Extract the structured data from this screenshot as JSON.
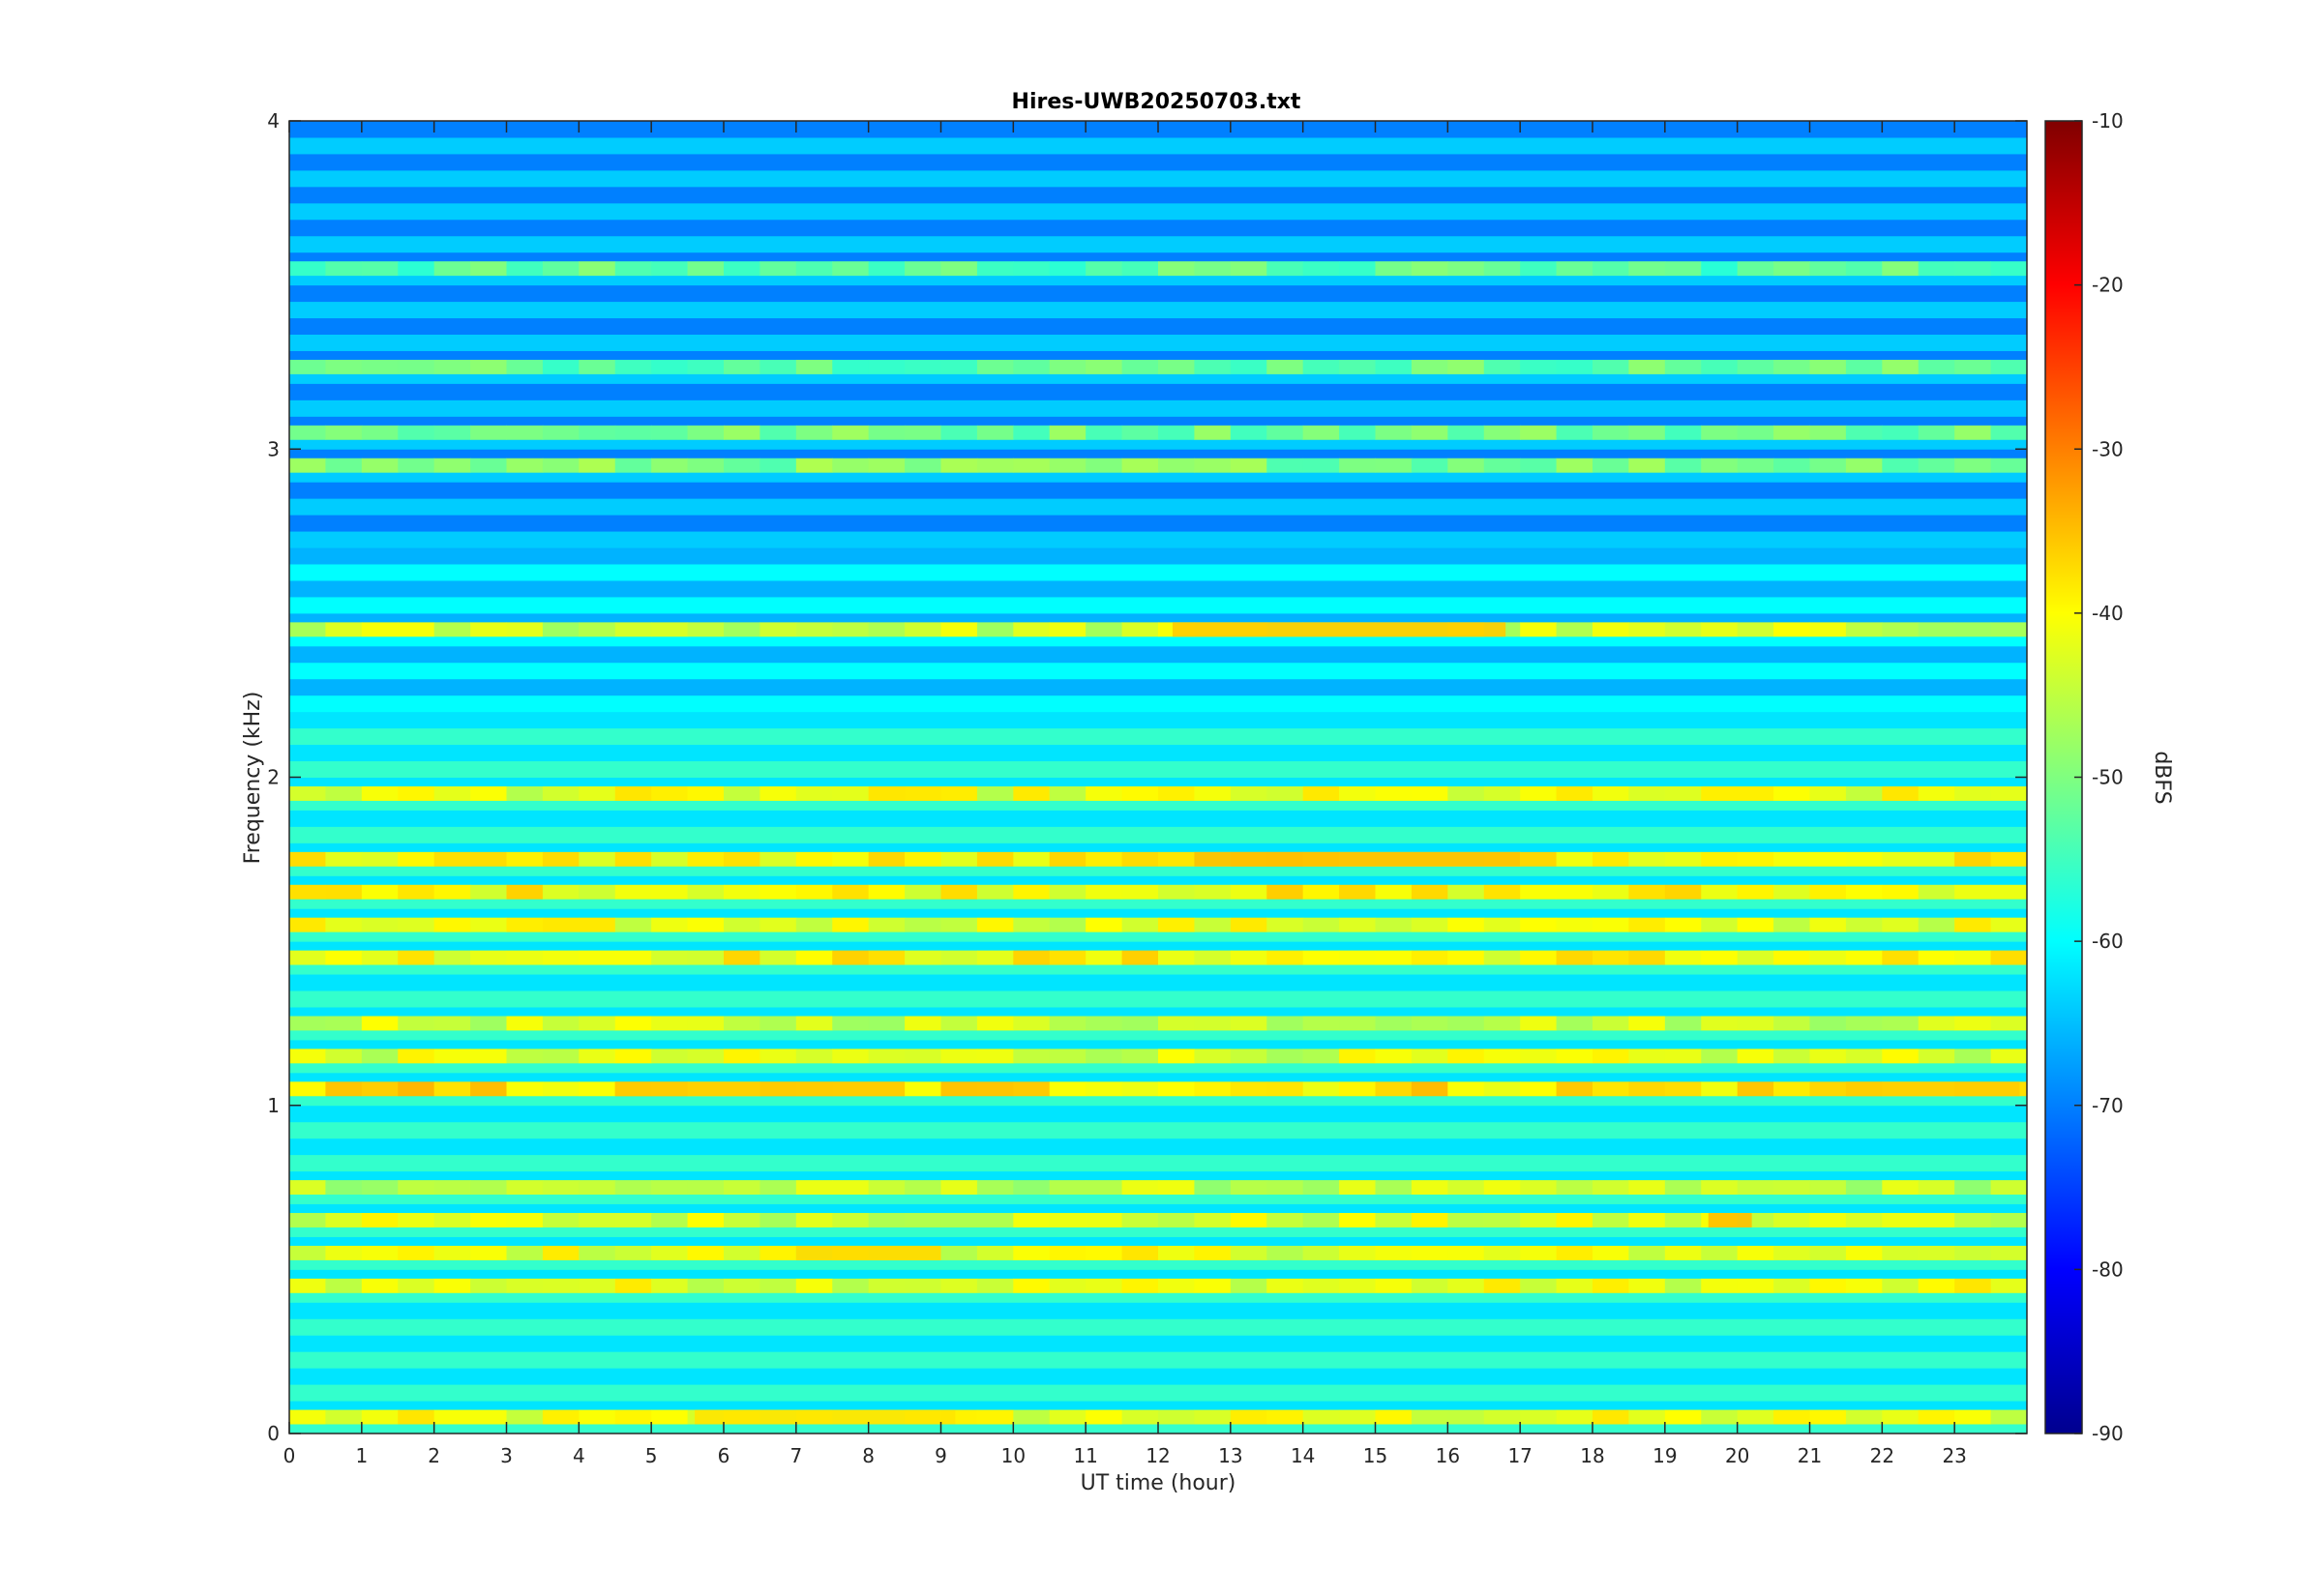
{
  "chart_data": {
    "type": "heatmap",
    "title": "Hires-UWB20250703.txt",
    "xlabel": "UT time (hour)",
    "ylabel": "Frequency (kHz)",
    "xlim": [
      0,
      24
    ],
    "ylim": [
      0,
      4
    ],
    "x_ticks": [
      "0",
      "1",
      "2",
      "3",
      "4",
      "5",
      "6",
      "7",
      "8",
      "9",
      "10",
      "11",
      "12",
      "13",
      "14",
      "15",
      "16",
      "17",
      "18",
      "19",
      "20",
      "21",
      "22",
      "23"
    ],
    "y_ticks": [
      "0",
      "1",
      "2",
      "3",
      "4"
    ],
    "colorbar": {
      "label": "dBFS",
      "range": [
        -90,
        -10
      ],
      "ticks": [
        "-10",
        "-20",
        "-30",
        "-40",
        "-50",
        "-60",
        "-70",
        "-80",
        "-90"
      ],
      "colormap": "jet"
    },
    "frequency_bands_khz": [
      {
        "center": 0.05,
        "level_dbfs": -42
      },
      {
        "center": 0.45,
        "level_dbfs": -42
      },
      {
        "center": 0.55,
        "level_dbfs": -42
      },
      {
        "center": 0.65,
        "level_dbfs": -43
      },
      {
        "center": 0.75,
        "level_dbfs": -45
      },
      {
        "center": 1.05,
        "level_dbfs": -38
      },
      {
        "center": 1.15,
        "level_dbfs": -43
      },
      {
        "center": 1.25,
        "level_dbfs": -44
      },
      {
        "center": 1.45,
        "level_dbfs": -40
      },
      {
        "center": 1.55,
        "level_dbfs": -42
      },
      {
        "center": 1.65,
        "level_dbfs": -40
      },
      {
        "center": 1.75,
        "level_dbfs": -40
      },
      {
        "center": 1.95,
        "level_dbfs": -42
      },
      {
        "center": 2.45,
        "level_dbfs": -44
      },
      {
        "center": 2.95,
        "level_dbfs": -50
      },
      {
        "center": 3.05,
        "level_dbfs": -51
      },
      {
        "center": 3.25,
        "level_dbfs": -52
      },
      {
        "center": 3.55,
        "level_dbfs": -53
      }
    ],
    "events": [
      {
        "x_range": [
          12.2,
          16.8
        ],
        "freq_khz": 2.45,
        "level_dbfs": -36
      },
      {
        "x_range": [
          12.5,
          17.0
        ],
        "freq_khz": 1.75,
        "level_dbfs": -35
      },
      {
        "x_range": [
          4.5,
          8.5
        ],
        "freq_khz": 1.05,
        "level_dbfs": -36
      },
      {
        "x_range": [
          21.5,
          23.9
        ],
        "freq_khz": 1.05,
        "level_dbfs": -36
      },
      {
        "x_range": [
          5.6,
          9.2
        ],
        "freq_khz": 0.05,
        "level_dbfs": -38
      },
      {
        "x_range": [
          7.0,
          9.0
        ],
        "freq_khz": 0.55,
        "level_dbfs": -37
      },
      {
        "x_range": [
          19.6,
          20.2
        ],
        "freq_khz": 0.65,
        "level_dbfs": -35
      }
    ],
    "grid": false
  },
  "colors": {
    "background": "#ffffff",
    "axis": "#262626"
  }
}
